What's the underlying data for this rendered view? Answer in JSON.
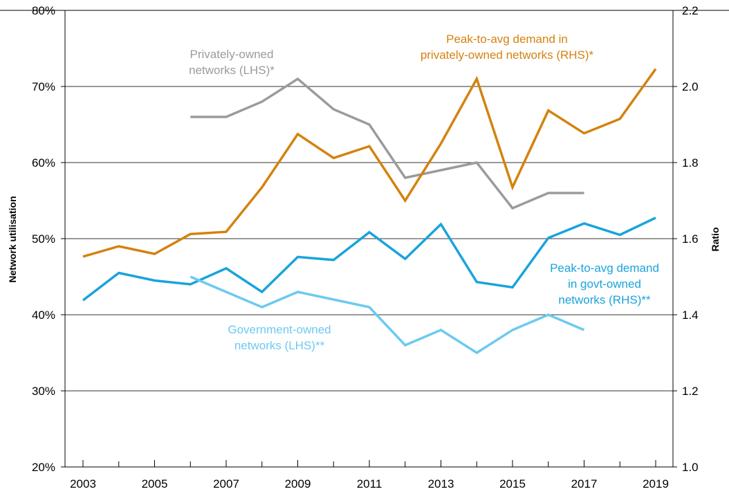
{
  "chart_data": {
    "type": "line",
    "x_ticks": [
      "2003",
      "2005",
      "2007",
      "2009",
      "2011",
      "2013",
      "2015",
      "2017",
      "2019"
    ],
    "xlim": [
      2003,
      2019
    ],
    "y_left": {
      "label": "Network utilisation",
      "ticks": [
        "80%",
        "70%",
        "60%",
        "50%",
        "40%",
        "30%",
        "20%"
      ],
      "lim": [
        20,
        80
      ]
    },
    "y_right": {
      "label": "Ratio",
      "ticks": [
        "2.2",
        "2.0",
        "1.8",
        "1.6",
        "1.4",
        "1.2",
        "1.0"
      ],
      "lim": [
        1.0,
        2.2
      ]
    },
    "grid": "horizontal",
    "series": [
      {
        "name": "Privately-owned networks (LHS)*",
        "axis": "left",
        "color": "#9b9b9b",
        "x": [
          2006,
          2007,
          2008,
          2009,
          2010,
          2011,
          2012,
          2013,
          2014,
          2015,
          2016,
          2017
        ],
        "values": [
          66,
          66,
          68,
          71,
          67,
          65,
          58,
          59,
          60,
          54,
          56,
          56
        ]
      },
      {
        "name": "Peak-to-avg demand in privately-owned networks (RHS)*",
        "axis": "right",
        "color": "#d4820f",
        "x": [
          2003,
          2004,
          2005,
          2006,
          2007,
          2008,
          2009,
          2010,
          2011,
          2012,
          2013,
          2014,
          2015,
          2016,
          2017,
          2018,
          2019
        ],
        "values": [
          1.553,
          1.58,
          1.56,
          1.612,
          1.618,
          1.735,
          1.875,
          1.812,
          1.843,
          1.7,
          1.85,
          2.02,
          1.735,
          1.937,
          1.877,
          1.915,
          2.046
        ]
      },
      {
        "name": "Peak-to-avg demand in govt-owned networks (RHS)**",
        "axis": "right",
        "color": "#1aa3dc",
        "x": [
          2003,
          2004,
          2005,
          2006,
          2007,
          2008,
          2009,
          2010,
          2011,
          2012,
          2013,
          2014,
          2015,
          2016,
          2017,
          2018,
          2019
        ],
        "values": [
          1.438,
          1.51,
          1.49,
          1.48,
          1.522,
          1.46,
          1.552,
          1.544,
          1.617,
          1.547,
          1.638,
          1.486,
          1.472,
          1.602,
          1.64,
          1.61,
          1.655
        ]
      },
      {
        "name": "Government-owned networks (LHS)**",
        "axis": "left",
        "color": "#6ccaf0",
        "x": [
          2006,
          2007,
          2008,
          2009,
          2010,
          2011,
          2012,
          2013,
          2014,
          2015,
          2016,
          2017
        ],
        "values": [
          45,
          43,
          41,
          43,
          42,
          41,
          36,
          38,
          35,
          38,
          40,
          38
        ]
      }
    ],
    "annotations": [
      {
        "lines": [
          "Privately-owned",
          "networks (LHS)*"
        ],
        "color": "#9b9b9b"
      },
      {
        "lines": [
          "Peak-to-avg demand in",
          "privately-owned networks (RHS)*"
        ],
        "color": "#d4820f"
      },
      {
        "lines": [
          "Peak-to-avg demand",
          "in govt-owned",
          "networks (RHS)**"
        ],
        "color": "#1aa3dc"
      },
      {
        "lines": [
          "Government-owned",
          "networks (LHS)**"
        ],
        "color": "#6ccaf0"
      }
    ]
  }
}
